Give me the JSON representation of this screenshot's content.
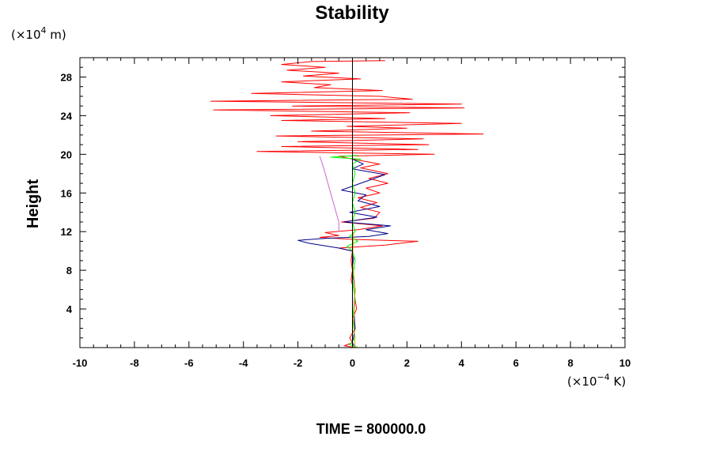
{
  "chart_data": {
    "type": "line",
    "title": "Stability",
    "ylabel": "Height",
    "y_unit": {
      "prefix": "(×10",
      "exp": "4",
      "suffix": " m)"
    },
    "x_unit": {
      "prefix": "(×10",
      "exp": "−4",
      "suffix": " K)"
    },
    "footer": "TIME = 800000.0",
    "xlim": [
      -10,
      10
    ],
    "ylim": [
      0,
      30
    ],
    "x_ticks": [
      -10,
      -8,
      -6,
      -4,
      -2,
      0,
      2,
      4,
      6,
      8,
      10
    ],
    "y_ticks": [
      4,
      8,
      12,
      16,
      20,
      24,
      28
    ],
    "grid": false,
    "series": [
      {
        "color": "#ff0000",
        "points": [
          [
            0.1,
            0.0
          ],
          [
            -0.3,
            0.2
          ],
          [
            0.0,
            0.5
          ],
          [
            -0.1,
            1.0
          ],
          [
            0.1,
            2.0
          ],
          [
            0.0,
            3.0
          ],
          [
            0.15,
            4.0
          ],
          [
            0.1,
            5.0
          ],
          [
            0.05,
            6.0
          ],
          [
            -0.05,
            7.0
          ],
          [
            0.0,
            8.0
          ],
          [
            -0.05,
            9.0
          ],
          [
            0.0,
            10.0
          ],
          [
            -0.5,
            10.3
          ],
          [
            1.2,
            10.6
          ],
          [
            2.4,
            11.0
          ],
          [
            0.0,
            11.2
          ],
          [
            -1.2,
            11.4
          ],
          [
            -0.5,
            11.6
          ],
          [
            -1.0,
            11.9
          ],
          [
            0.2,
            12.2
          ],
          [
            1.1,
            12.6
          ],
          [
            -0.4,
            13.0
          ],
          [
            0.8,
            13.4
          ],
          [
            1.0,
            14.0
          ],
          [
            0.3,
            14.5
          ],
          [
            0.9,
            15.0
          ],
          [
            0.2,
            15.5
          ],
          [
            1.0,
            16.0
          ],
          [
            0.5,
            16.5
          ],
          [
            1.3,
            17.0
          ],
          [
            0.6,
            17.5
          ],
          [
            1.3,
            18.0
          ],
          [
            0.3,
            18.6
          ],
          [
            1.0,
            19.0
          ],
          [
            0.0,
            19.5
          ],
          [
            -0.5,
            19.8
          ],
          [
            3.0,
            20.0
          ],
          [
            -3.5,
            20.3
          ],
          [
            2.4,
            20.5
          ],
          [
            -2.6,
            20.8
          ],
          [
            2.8,
            21.0
          ],
          [
            -2.0,
            21.3
          ],
          [
            2.6,
            21.6
          ],
          [
            -2.8,
            21.9
          ],
          [
            4.8,
            22.1
          ],
          [
            -1.5,
            22.4
          ],
          [
            2.0,
            22.7
          ],
          [
            -0.2,
            22.9
          ],
          [
            4.0,
            23.2
          ],
          [
            -2.6,
            23.5
          ],
          [
            1.2,
            23.7
          ],
          [
            -3.0,
            24.0
          ],
          [
            2.1,
            24.3
          ],
          [
            -5.1,
            24.6
          ],
          [
            4.1,
            24.8
          ],
          [
            -2.2,
            25.0
          ],
          [
            4.0,
            25.2
          ],
          [
            -5.2,
            25.5
          ],
          [
            2.2,
            25.7
          ],
          [
            1.0,
            26.0
          ],
          [
            -3.7,
            26.3
          ],
          [
            1.1,
            26.6
          ],
          [
            -1.4,
            26.9
          ],
          [
            -0.8,
            27.2
          ],
          [
            -2.6,
            27.5
          ],
          [
            0.3,
            27.8
          ],
          [
            -1.8,
            28.1
          ],
          [
            -0.5,
            28.4
          ],
          [
            -2.4,
            28.7
          ],
          [
            -1.0,
            29.0
          ],
          [
            -2.6,
            29.3
          ],
          [
            -1.5,
            29.6
          ],
          [
            1.2,
            29.7
          ]
        ]
      },
      {
        "color": "#00008b",
        "points": [
          [
            0.1,
            0.0
          ],
          [
            0.0,
            0.5
          ],
          [
            0.1,
            2.0
          ],
          [
            0.05,
            4.0
          ],
          [
            0.1,
            6.0
          ],
          [
            0.0,
            8.0
          ],
          [
            0.05,
            9.5
          ],
          [
            0.0,
            10.0
          ],
          [
            -0.5,
            10.3
          ],
          [
            -1.6,
            10.8
          ],
          [
            -2.0,
            11.1
          ],
          [
            -1.0,
            11.3
          ],
          [
            0.6,
            11.5
          ],
          [
            1.3,
            11.8
          ],
          [
            0.5,
            12.2
          ],
          [
            1.4,
            12.6
          ],
          [
            -0.3,
            13.0
          ],
          [
            0.9,
            13.5
          ],
          [
            -0.1,
            14.0
          ],
          [
            1.0,
            14.6
          ],
          [
            0.2,
            15.2
          ],
          [
            0.5,
            15.8
          ],
          [
            -0.4,
            16.3
          ],
          [
            0.3,
            17.0
          ],
          [
            1.2,
            17.9
          ],
          [
            0.0,
            18.5
          ],
          [
            0.4,
            19.0
          ],
          [
            0.0,
            19.5
          ],
          [
            0.0,
            29.8
          ]
        ]
      },
      {
        "color": "#00ff00",
        "points": [
          [
            0.2,
            0.0
          ],
          [
            -0.1,
            0.3
          ],
          [
            0.1,
            1.0
          ],
          [
            0.0,
            3.0
          ],
          [
            0.1,
            5.0
          ],
          [
            0.0,
            7.0
          ],
          [
            0.1,
            9.0
          ],
          [
            0.0,
            10.0
          ],
          [
            -0.2,
            10.5
          ],
          [
            0.2,
            11.0
          ],
          [
            -0.1,
            11.5
          ],
          [
            0.1,
            12.0
          ],
          [
            0.0,
            13.0
          ],
          [
            0.1,
            14.0
          ],
          [
            0.0,
            15.0
          ],
          [
            0.1,
            16.0
          ],
          [
            0.0,
            17.0
          ],
          [
            0.1,
            18.0
          ],
          [
            0.0,
            19.0
          ],
          [
            0.3,
            19.5
          ],
          [
            -0.8,
            19.7
          ],
          [
            0.2,
            19.9
          ]
        ]
      },
      {
        "color": "#cc66cc",
        "points": [
          [
            -0.5,
            12.0
          ],
          [
            -0.5,
            13.0
          ],
          [
            -0.6,
            14.0
          ],
          [
            -0.7,
            15.0
          ],
          [
            -0.8,
            16.0
          ],
          [
            -0.9,
            17.0
          ],
          [
            -1.0,
            18.0
          ],
          [
            -1.1,
            19.0
          ],
          [
            -1.2,
            19.8
          ]
        ]
      },
      {
        "color": "#ccaa00",
        "points": [
          [
            0.1,
            0.0
          ],
          [
            0.05,
            3.0
          ],
          [
            0.1,
            6.0
          ],
          [
            0.0,
            9.0
          ],
          [
            0.05,
            12.0
          ]
        ]
      },
      {
        "color": "#000000",
        "points": [
          [
            0.0,
            0.0
          ],
          [
            0.0,
            29.8
          ]
        ]
      }
    ]
  }
}
